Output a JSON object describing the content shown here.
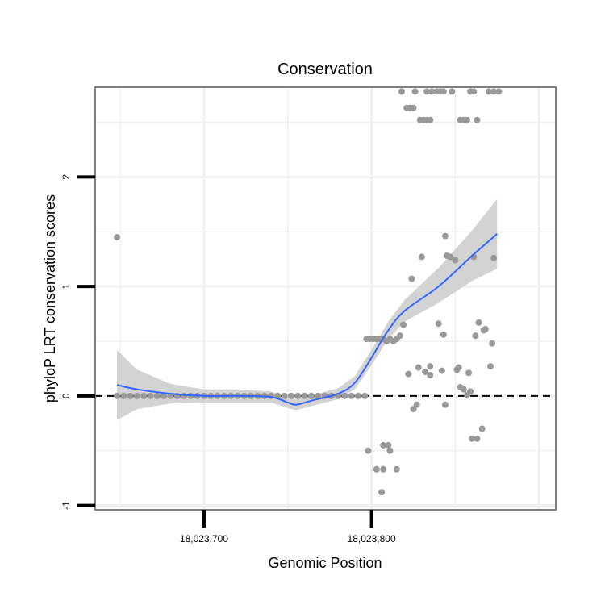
{
  "chart_data": {
    "type": "scatter",
    "title": "Conservation",
    "xlabel": "Genomic Position",
    "ylabel": "phyloP LRT conservation scores",
    "xlim": [
      18023635,
      18023910
    ],
    "ylim": [
      -1.04,
      2.82
    ],
    "x_ticks": [
      {
        "value": 18023700,
        "label": "18,023,700"
      },
      {
        "value": 18023800,
        "label": "18,023,800"
      }
    ],
    "y_ticks": [
      {
        "value": -1,
        "label": "-1"
      },
      {
        "value": 0,
        "label": "0"
      },
      {
        "value": 1,
        "label": "1"
      },
      {
        "value": 2,
        "label": "2"
      }
    ],
    "grid": true,
    "reference_line": {
      "y": 0,
      "style": "dashed"
    },
    "colors": {
      "points": "#999999",
      "smooth_line": "#3366ff",
      "confidence_band": "#d3d3d3",
      "panel_border": "#7f7f7f",
      "grid": "#f0f0f0"
    },
    "series": [
      {
        "type": "points",
        "points": [
          [
            18023648,
            1.45
          ],
          [
            18023648,
            0
          ],
          [
            18023652,
            0
          ],
          [
            18023656,
            0
          ],
          [
            18023660,
            0
          ],
          [
            18023664,
            0
          ],
          [
            18023668,
            0
          ],
          [
            18023672,
            0
          ],
          [
            18023676,
            0
          ],
          [
            18023680,
            0
          ],
          [
            18023684,
            0
          ],
          [
            18023688,
            0
          ],
          [
            18023692,
            0
          ],
          [
            18023696,
            0
          ],
          [
            18023700,
            0
          ],
          [
            18023704,
            0
          ],
          [
            18023708,
            0
          ],
          [
            18023712,
            0
          ],
          [
            18023716,
            0
          ],
          [
            18023720,
            0
          ],
          [
            18023724,
            0
          ],
          [
            18023728,
            0
          ],
          [
            18023732,
            0
          ],
          [
            18023736,
            0
          ],
          [
            18023740,
            0
          ],
          [
            18023744,
            0
          ],
          [
            18023748,
            0
          ],
          [
            18023752,
            0
          ],
          [
            18023756,
            0
          ],
          [
            18023760,
            0
          ],
          [
            18023764,
            0
          ],
          [
            18023768,
            0
          ],
          [
            18023772,
            0
          ],
          [
            18023776,
            0
          ],
          [
            18023780,
            0
          ],
          [
            18023784,
            0
          ],
          [
            18023788,
            0
          ],
          [
            18023792,
            0
          ],
          [
            18023796,
            0
          ],
          [
            18023797,
            0.52
          ],
          [
            18023799,
            0.52
          ],
          [
            18023801,
            0.52
          ],
          [
            18023803,
            0.52
          ],
          [
            18023805,
            0.52
          ],
          [
            18023807,
            0.52
          ],
          [
            18023809,
            0.5
          ],
          [
            18023811,
            0.52
          ],
          [
            18023813,
            0.5
          ],
          [
            18023815,
            0.52
          ],
          [
            18023817,
            0.55
          ],
          [
            18023819,
            0.65
          ],
          [
            18023798,
            -0.5
          ],
          [
            18023803,
            -0.67
          ],
          [
            18023806,
            -0.88
          ],
          [
            18023807,
            -0.67
          ],
          [
            18023807,
            -0.45
          ],
          [
            18023810,
            -0.45
          ],
          [
            18023811,
            -0.5
          ],
          [
            18023815,
            -0.67
          ],
          [
            18023818,
            2.78
          ],
          [
            18023821,
            2.63
          ],
          [
            18023823,
            2.63
          ],
          [
            18023825,
            2.63
          ],
          [
            18023826,
            2.78
          ],
          [
            18023829,
            2.52
          ],
          [
            18023831,
            2.52
          ],
          [
            18023833,
            2.52
          ],
          [
            18023835,
            2.52
          ],
          [
            18023833,
            2.78
          ],
          [
            18023836,
            2.78
          ],
          [
            18023839,
            2.78
          ],
          [
            18023841,
            2.78
          ],
          [
            18023843,
            2.78
          ],
          [
            18023848,
            2.78
          ],
          [
            18023853,
            2.52
          ],
          [
            18023855,
            2.52
          ],
          [
            18023857,
            2.52
          ],
          [
            18023859,
            2.78
          ],
          [
            18023861,
            2.78
          ],
          [
            18023863,
            2.52
          ],
          [
            18023870,
            2.78
          ],
          [
            18023873,
            2.78
          ],
          [
            18023876,
            2.78
          ],
          [
            18023824,
            1.07
          ],
          [
            18023830,
            1.27
          ],
          [
            18023822,
            0.2
          ],
          [
            18023825,
            -0.12
          ],
          [
            18023827,
            -0.08
          ],
          [
            18023828,
            0.26
          ],
          [
            18023832,
            0.22
          ],
          [
            18023835,
            0.19
          ],
          [
            18023835,
            0.27
          ],
          [
            18023840,
            0.66
          ],
          [
            18023842,
            0.23
          ],
          [
            18023843,
            0.56
          ],
          [
            18023844,
            -0.08
          ],
          [
            18023844,
            1.46
          ],
          [
            18023845,
            1.28
          ],
          [
            18023847,
            1.27
          ],
          [
            18023850,
            1.24
          ],
          [
            18023851,
            0.24
          ],
          [
            18023852,
            0.26
          ],
          [
            18023853,
            0.08
          ],
          [
            18023855,
            0.06
          ],
          [
            18023857,
            0.01
          ],
          [
            18023858,
            0.21
          ],
          [
            18023859,
            0.04
          ],
          [
            18023860,
            -0.39
          ],
          [
            18023861,
            1.27
          ],
          [
            18023862,
            0.55
          ],
          [
            18023863,
            -0.39
          ],
          [
            18023864,
            0.67
          ],
          [
            18023866,
            -0.3
          ],
          [
            18023867,
            0.6
          ],
          [
            18023868,
            0.61
          ],
          [
            18023871,
            0.27
          ],
          [
            18023872,
            0.48
          ],
          [
            18023873,
            1.26
          ]
        ]
      },
      {
        "type": "smooth",
        "x": [
          18023648,
          18023660,
          18023680,
          18023700,
          18023720,
          18023740,
          18023750,
          18023755,
          18023765,
          18023780,
          18023790,
          18023800,
          18023810,
          18023820,
          18023840,
          18023860,
          18023875
        ],
        "y": [
          0.1,
          0.06,
          0.02,
          0.0,
          0.0,
          -0.01,
          -0.06,
          -0.08,
          -0.04,
          0.02,
          0.12,
          0.35,
          0.6,
          0.78,
          1.0,
          1.28,
          1.48
        ],
        "lower": [
          -0.22,
          -0.12,
          -0.07,
          -0.06,
          -0.06,
          -0.06,
          -0.11,
          -0.13,
          -0.09,
          -0.03,
          0.06,
          0.28,
          0.52,
          0.68,
          0.85,
          1.05,
          1.16
        ],
        "upper": [
          0.42,
          0.24,
          0.11,
          0.06,
          0.06,
          0.04,
          -0.01,
          -0.03,
          0.01,
          0.07,
          0.18,
          0.42,
          0.68,
          0.88,
          1.17,
          1.51,
          1.8
        ]
      }
    ]
  }
}
